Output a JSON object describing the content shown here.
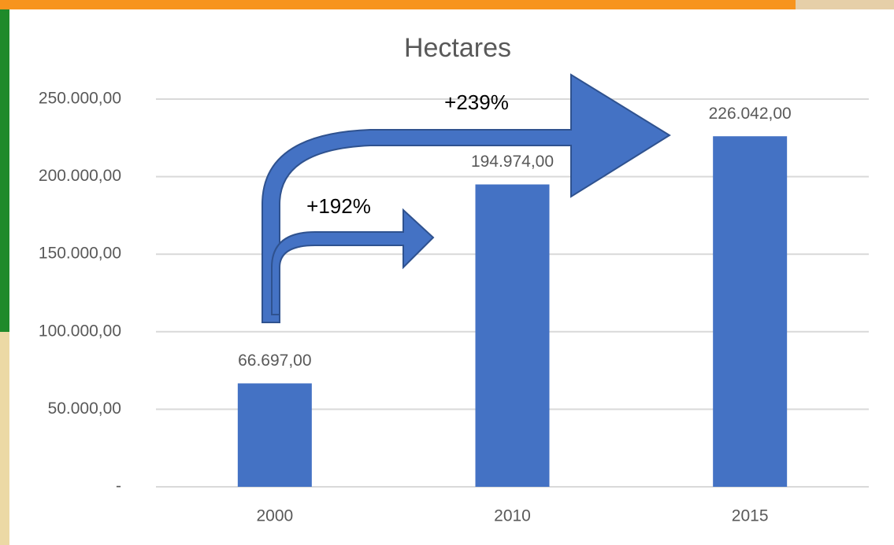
{
  "chart_data": {
    "type": "bar",
    "title": "Hectares",
    "categories": [
      "2000",
      "2010",
      "2015"
    ],
    "values": [
      66697,
      194974,
      226042
    ],
    "value_labels": [
      "66.697,00",
      "194.974,00",
      "226.042,00"
    ],
    "color": "#4472c4",
    "ylim": [
      0,
      250000
    ],
    "yticks": [
      {
        "value": 0,
        "label": "-"
      },
      {
        "value": 50000,
        "label": "50.000,00"
      },
      {
        "value": 100000,
        "label": "100.000,00"
      },
      {
        "value": 150000,
        "label": "150.000,00"
      },
      {
        "value": 200000,
        "label": "200.000,00"
      },
      {
        "value": 250000,
        "label": "250.000,00"
      }
    ],
    "grid": true,
    "annotations": [
      "+239%",
      "+192%"
    ]
  }
}
